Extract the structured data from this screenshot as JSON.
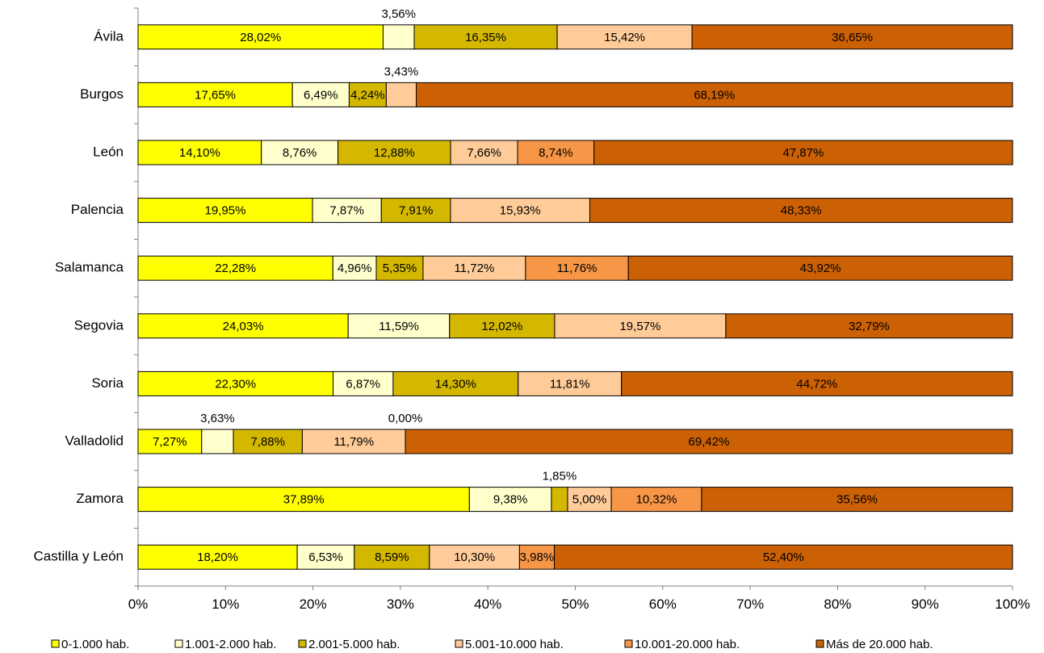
{
  "chart_data": {
    "type": "bar",
    "orientation": "horizontal",
    "stacked": "percent",
    "categories": [
      "Ávila",
      "Burgos",
      "León",
      "Palencia",
      "Salamanca",
      "Segovia",
      "Soria",
      "Valladolid",
      "Zamora",
      "Castilla y León"
    ],
    "series": [
      {
        "name": "0-1.000 hab.",
        "color": "#ffff00",
        "values": [
          28.02,
          17.65,
          14.1,
          19.95,
          22.28,
          24.03,
          22.3,
          7.27,
          37.89,
          18.2
        ],
        "labels": [
          "28,02%",
          "17,65%",
          "14,10%",
          "19,95%",
          "22,28%",
          "24,03%",
          "22,30%",
          "7,27%",
          "37,89%",
          "18,20%"
        ]
      },
      {
        "name": "1.001-2.000 hab.",
        "color": "#ffffcc",
        "values": [
          3.56,
          6.49,
          8.76,
          7.87,
          4.96,
          11.59,
          6.87,
          3.63,
          9.38,
          6.53
        ],
        "labels": [
          "3,56%",
          "6,49%",
          "8,76%",
          "7,87%",
          "4,96%",
          "11,59%",
          "6,87%",
          "3,63%",
          "9,38%",
          "6,53%"
        ]
      },
      {
        "name": "2.001-5.000 hab.",
        "color": "#d4b800",
        "values": [
          16.35,
          4.24,
          12.88,
          7.91,
          5.35,
          12.02,
          14.3,
          7.88,
          1.85,
          8.59
        ],
        "labels": [
          "16,35%",
          "4,24%",
          "12,88%",
          "7,91%",
          "5,35%",
          "12,02%",
          "14,30%",
          "7,88%",
          "1,85%",
          "8,59%"
        ]
      },
      {
        "name": "5.001-10.000 hab.",
        "color": "#ffcc99",
        "values": [
          15.42,
          3.43,
          7.66,
          15.93,
          11.72,
          19.57,
          11.81,
          11.79,
          5.0,
          10.3
        ],
        "labels": [
          "15,42%",
          "3,43%",
          "7,66%",
          "15,93%",
          "11,72%",
          "19,57%",
          "11,81%",
          "11,79%",
          "5,00%",
          "10,30%"
        ]
      },
      {
        "name": "10.001-20.000 hab.",
        "color": "#f79646",
        "values": [
          0,
          0,
          8.74,
          0,
          11.76,
          0,
          0,
          0.0,
          10.32,
          3.98
        ],
        "labels": [
          "",
          "",
          "8,74%",
          "",
          "11,76%",
          "",
          "",
          "0,00%",
          "10,32%",
          "3,98%"
        ]
      },
      {
        "name": "Más de 20.000 hab.",
        "color": "#cc6004",
        "values": [
          36.65,
          68.19,
          47.87,
          48.33,
          43.92,
          32.79,
          44.72,
          69.42,
          35.56,
          52.4
        ],
        "labels": [
          "36,65%",
          "68,19%",
          "47,87%",
          "48,33%",
          "43,92%",
          "32,79%",
          "44,72%",
          "69,42%",
          "35,56%",
          "52,40%"
        ]
      }
    ],
    "xticks": [
      "0%",
      "10%",
      "20%",
      "30%",
      "40%",
      "50%",
      "60%",
      "70%",
      "80%",
      "90%",
      "100%"
    ],
    "xlim": [
      0,
      100
    ],
    "grid": false,
    "legend_position": "bottom"
  }
}
